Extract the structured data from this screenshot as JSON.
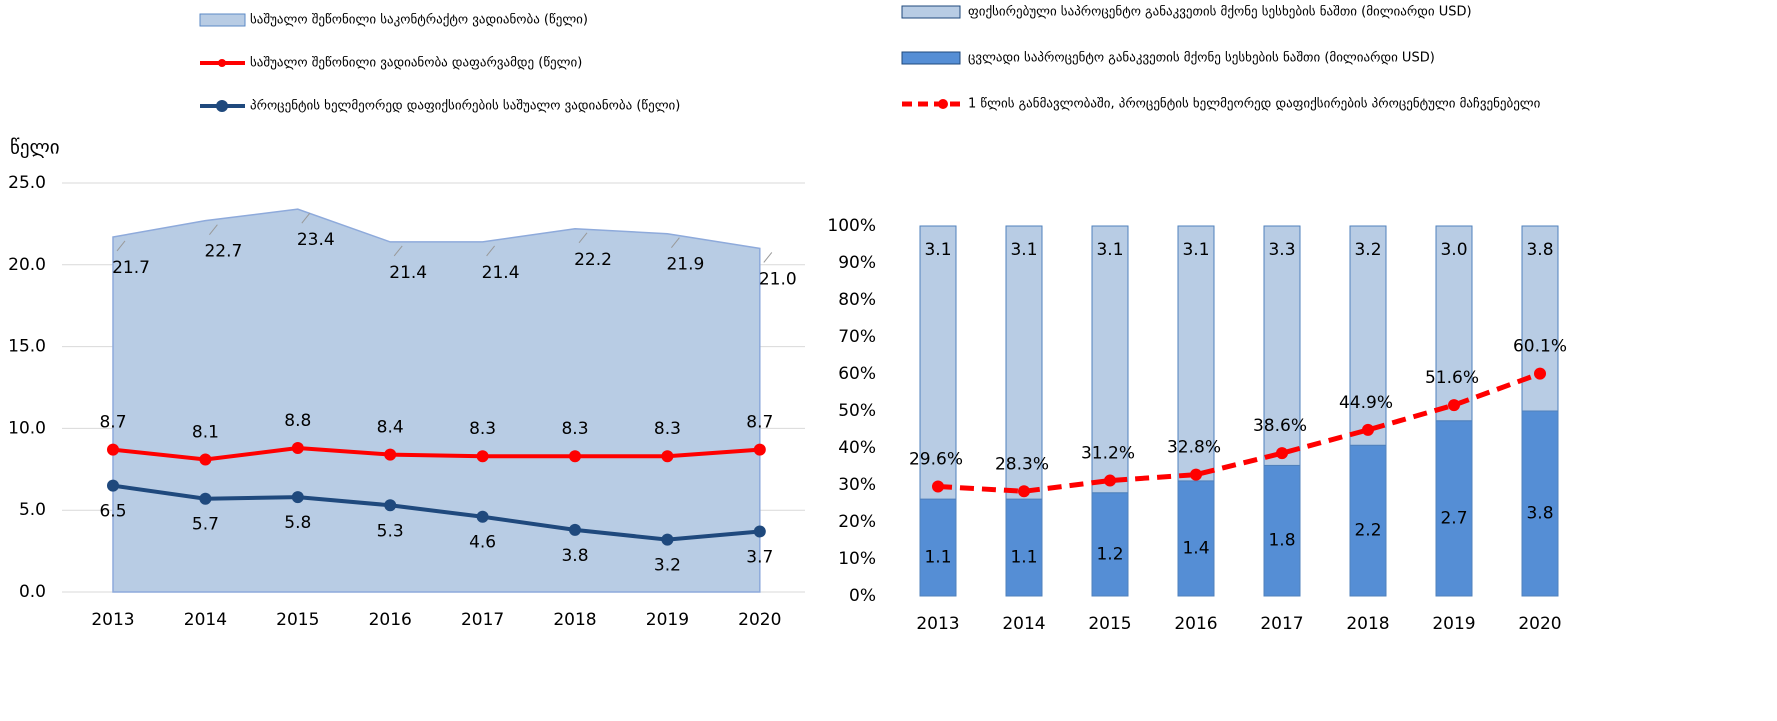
{
  "chart_data": [
    {
      "type": "area",
      "y_label": "წელი",
      "categories": [
        "2013",
        "2014",
        "2015",
        "2016",
        "2017",
        "2018",
        "2019",
        "2020"
      ],
      "ylim": [
        0,
        25
      ],
      "yticks": [
        {
          "value": 0,
          "label": "0.0"
        },
        {
          "value": 5,
          "label": "5.0"
        },
        {
          "value": 10,
          "label": "10.0"
        },
        {
          "value": 15,
          "label": "15.0"
        },
        {
          "value": 20,
          "label": "20.0"
        },
        {
          "value": 25,
          "label": "25.0"
        }
      ],
      "grid": true,
      "series": [
        {
          "name": "საშუალო  შეწონილი საკონტრაქტო ვადიანობა (წელი)",
          "kind": "area",
          "color": "#b8cce4",
          "values": [
            21.7,
            22.7,
            23.4,
            21.4,
            21.4,
            22.2,
            21.9,
            21.0
          ],
          "value_labels": [
            "21.7",
            "22.7",
            "23.4",
            "21.4",
            "21.4",
            "22.2",
            "21.9",
            "21.0"
          ]
        },
        {
          "name": "საშუალო  შეწონილი ვადიანობა  დაფარვამდე  (წელი)",
          "kind": "line",
          "color": "#ff0000",
          "values": [
            8.7,
            8.1,
            8.8,
            8.4,
            8.3,
            8.3,
            8.3,
            8.7
          ],
          "value_labels": [
            "8.7",
            "8.1",
            "8.8",
            "8.4",
            "8.3",
            "8.3",
            "8.3",
            "8.7"
          ]
        },
        {
          "name": "პროცენტის ხელმეორედ დაფიქსირების საშუალო ვადიანობა (წელი)",
          "kind": "line",
          "color": "#1f497d",
          "values": [
            6.5,
            5.7,
            5.8,
            5.3,
            4.6,
            3.8,
            3.2,
            3.7
          ],
          "value_labels": [
            "6.5",
            "5.7",
            "5.8",
            "5.3",
            "4.6",
            "3.8",
            "3.2",
            "3.7"
          ]
        }
      ]
    },
    {
      "type": "bar",
      "stacked": "percent",
      "categories": [
        "2013",
        "2014",
        "2015",
        "2016",
        "2017",
        "2018",
        "2019",
        "2020"
      ],
      "ylim": [
        0,
        100
      ],
      "yticks": [
        {
          "value": 0,
          "label": "0%"
        },
        {
          "value": 10,
          "label": "10%"
        },
        {
          "value": 20,
          "label": "20%"
        },
        {
          "value": 30,
          "label": "30%"
        },
        {
          "value": 40,
          "label": "40%"
        },
        {
          "value": 50,
          "label": "50%"
        },
        {
          "value": 60,
          "label": "60%"
        },
        {
          "value": 70,
          "label": "70%"
        },
        {
          "value": 80,
          "label": "80%"
        },
        {
          "value": 90,
          "label": "90%"
        },
        {
          "value": 100,
          "label": "100%"
        }
      ],
      "series": [
        {
          "name": "ფიქსირებული საპროცენტო განაკვეთის მქონე სესხების ნაშთი (მილიარდი USD)",
          "kind": "bar",
          "color": "#b8cce4",
          "values": [
            3.1,
            3.1,
            3.1,
            3.1,
            3.3,
            3.2,
            3.0,
            3.8
          ],
          "value_labels": [
            "3.1",
            "3.1",
            "3.1",
            "3.1",
            "3.3",
            "3.2",
            "3.0",
            "3.8"
          ]
        },
        {
          "name": "ცვლადი საპროცენტო განაკვეთის მქონე სესხების ნაშთი (მილიარდი USD)",
          "kind": "bar",
          "color": "#558ed5",
          "values": [
            1.1,
            1.1,
            1.2,
            1.4,
            1.8,
            2.2,
            2.7,
            3.8
          ],
          "value_labels": [
            "1.1",
            "1.1",
            "1.2",
            "1.4",
            "1.8",
            "2.2",
            "2.7",
            "3.8"
          ]
        },
        {
          "name": "1 წლის განმავლობაში, პროცენტის ხელმეორედ დაფიქსირების პროცენტული მაჩვენებელი",
          "kind": "line",
          "dashed": true,
          "color": "#ff0000",
          "values": [
            29.6,
            28.3,
            31.2,
            32.8,
            38.6,
            44.9,
            51.6,
            60.1
          ],
          "value_labels": [
            "29.6%",
            "28.3%",
            "31.2%",
            "32.8%",
            "38.6%",
            "44.9%",
            "51.6%",
            "60.1%"
          ]
        }
      ]
    }
  ]
}
